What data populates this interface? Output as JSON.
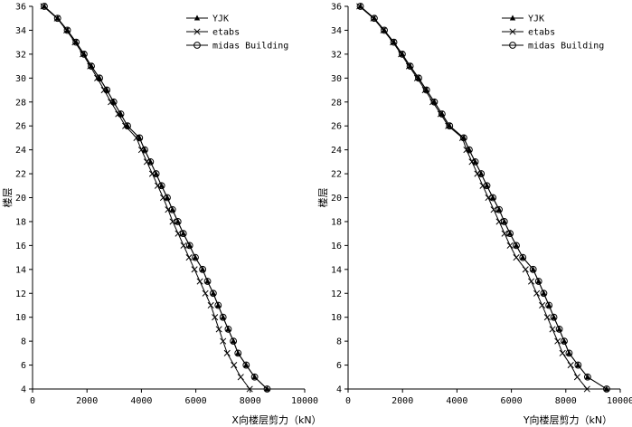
{
  "chart_data": [
    {
      "type": "line",
      "title": "",
      "xlabel": "X向楼层剪力（kN）",
      "ylabel": "楼层",
      "xlim": [
        0,
        10000
      ],
      "ylim": [
        4,
        36
      ],
      "xticks": [
        "0",
        "2000",
        "4000",
        "6000",
        "8000",
        "10000"
      ],
      "yticks": [
        "4",
        "6",
        "8",
        "10",
        "12",
        "14",
        "16",
        "18",
        "20",
        "22",
        "24",
        "26",
        "28",
        "30",
        "32",
        "34",
        "36"
      ],
      "grid": false,
      "legend_position": "top-right",
      "y": [
        36,
        35,
        34,
        33,
        32,
        31,
        30,
        29,
        28,
        27,
        26,
        25,
        24,
        23,
        22,
        21,
        20,
        19,
        18,
        17,
        16,
        15,
        14,
        13,
        12,
        11,
        10,
        9,
        8,
        7,
        6,
        5,
        4
      ],
      "series": [
        {
          "name": "YJK",
          "marker": "filled-triangle",
          "values": [
            430,
            920,
            1280,
            1600,
            1890,
            2160,
            2460,
            2730,
            2980,
            3240,
            3490,
            3930,
            4120,
            4330,
            4540,
            4740,
            4950,
            5140,
            5340,
            5540,
            5770,
            5980,
            6250,
            6430,
            6640,
            6820,
            7000,
            7190,
            7380,
            7550,
            7850,
            8160,
            8620
          ]
        },
        {
          "name": "etabs",
          "marker": "cross",
          "values": [
            400,
            900,
            1250,
            1560,
            1850,
            2120,
            2380,
            2630,
            2880,
            3150,
            3410,
            3820,
            4000,
            4200,
            4400,
            4600,
            4800,
            4980,
            5150,
            5350,
            5550,
            5750,
            5950,
            6150,
            6350,
            6550,
            6700,
            6850,
            7000,
            7150,
            7400,
            7650,
            7980
          ]
        },
        {
          "name": "midas Building",
          "marker": "open-circle",
          "values": [
            430,
            920,
            1280,
            1600,
            1890,
            2160,
            2460,
            2730,
            2980,
            3240,
            3490,
            3930,
            4120,
            4330,
            4540,
            4740,
            4950,
            5140,
            5340,
            5540,
            5770,
            5980,
            6250,
            6430,
            6640,
            6820,
            7000,
            7190,
            7380,
            7550,
            7850,
            8160,
            8620
          ]
        }
      ]
    },
    {
      "type": "line",
      "title": "",
      "xlabel": "Y向楼层剪力（kN）",
      "ylabel": "楼层",
      "xlim": [
        0,
        10000
      ],
      "ylim": [
        4,
        36
      ],
      "xticks": [
        "0",
        "2000",
        "4000",
        "6000",
        "8000",
        "10000"
      ],
      "yticks": [
        "4",
        "6",
        "8",
        "10",
        "12",
        "14",
        "16",
        "18",
        "20",
        "22",
        "24",
        "26",
        "28",
        "30",
        "32",
        "34",
        "36"
      ],
      "grid": false,
      "legend_position": "top-right",
      "y": [
        36,
        35,
        34,
        33,
        32,
        31,
        30,
        29,
        28,
        27,
        26,
        25,
        24,
        23,
        22,
        21,
        20,
        19,
        18,
        17,
        16,
        15,
        14,
        13,
        12,
        11,
        10,
        9,
        8,
        7,
        6,
        5,
        4
      ],
      "series": [
        {
          "name": "YJK",
          "marker": "filled-triangle",
          "values": [
            450,
            960,
            1330,
            1680,
            1990,
            2280,
            2590,
            2880,
            3170,
            3450,
            3730,
            4250,
            4450,
            4670,
            4890,
            5100,
            5320,
            5550,
            5740,
            5950,
            6180,
            6420,
            6800,
            7000,
            7190,
            7380,
            7560,
            7760,
            7940,
            8120,
            8450,
            8800,
            9500
          ]
        },
        {
          "name": "etabs",
          "marker": "cross",
          "values": [
            420,
            930,
            1300,
            1650,
            1950,
            2240,
            2540,
            2830,
            3110,
            3400,
            3680,
            4200,
            4350,
            4550,
            4750,
            4950,
            5150,
            5350,
            5550,
            5750,
            5950,
            6180,
            6520,
            6730,
            6930,
            7130,
            7320,
            7510,
            7700,
            7880,
            8180,
            8420,
            8780
          ]
        },
        {
          "name": "midas Building",
          "marker": "open-circle",
          "values": [
            450,
            960,
            1330,
            1680,
            1990,
            2280,
            2590,
            2880,
            3170,
            3450,
            3730,
            4250,
            4450,
            4670,
            4890,
            5100,
            5320,
            5550,
            5740,
            5950,
            6180,
            6420,
            6800,
            7000,
            7190,
            7380,
            7560,
            7760,
            7940,
            8120,
            8450,
            8800,
            9500
          ]
        }
      ]
    }
  ]
}
